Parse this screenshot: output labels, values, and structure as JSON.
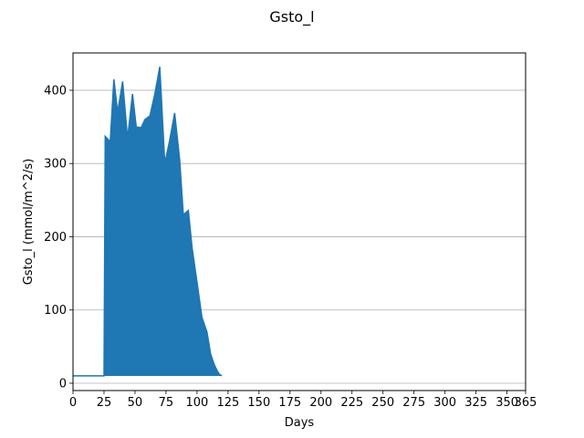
{
  "chart_data": {
    "type": "line",
    "title": "Gsto_l",
    "xlabel": "Days",
    "ylabel": "Gsto_l (mmol/m^2/s)",
    "ylim": [
      -10,
      451
    ],
    "xlim": [
      0,
      365
    ],
    "yticks": [
      0,
      100,
      200,
      300,
      400
    ],
    "xticks": [
      0,
      25,
      50,
      75,
      100,
      125,
      150,
      175,
      200,
      225,
      250,
      275,
      300,
      325,
      350,
      365
    ],
    "grid": "y",
    "legend": "none",
    "series_color": "#1f77b4",
    "series": [
      {
        "x": [
          0,
          10,
          20,
          25,
          26,
          30,
          33,
          36,
          40,
          44,
          48,
          51,
          55,
          58,
          62,
          66,
          70,
          74,
          78,
          82,
          86,
          89,
          93,
          96,
          100,
          104,
          108,
          111,
          114,
          116,
          118,
          120
        ],
        "y": [
          10,
          10,
          10,
          10,
          337,
          330,
          415,
          370,
          412,
          334,
          395,
          350,
          349,
          360,
          365,
          395,
          432,
          300,
          332,
          369,
          305,
          230,
          236,
          185,
          138,
          90,
          70,
          40,
          25,
          18,
          12,
          10
        ]
      }
    ]
  }
}
